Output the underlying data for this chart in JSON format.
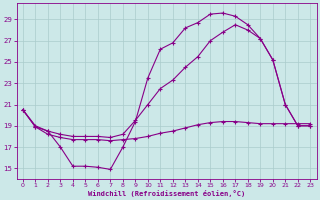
{
  "background_color": "#cce8e8",
  "grid_color": "#aacccc",
  "line_color": "#880088",
  "xlabel": "Windchill (Refroidissement éolien,°C)",
  "xlabel_color": "#880088",
  "tick_color": "#880088",
  "xlim": [
    -0.5,
    23.5
  ],
  "ylim": [
    14.0,
    30.5
  ],
  "yticks": [
    15,
    17,
    19,
    21,
    23,
    25,
    27,
    29
  ],
  "xticks": [
    0,
    1,
    2,
    3,
    4,
    5,
    6,
    7,
    8,
    9,
    10,
    11,
    12,
    13,
    14,
    15,
    16,
    17,
    18,
    19,
    20,
    21,
    22,
    23
  ],
  "top_x": [
    0,
    1,
    2,
    3,
    4,
    5,
    6,
    7,
    8,
    9,
    10,
    11,
    12,
    13,
    14,
    15,
    16,
    17,
    18,
    19,
    20,
    21,
    22,
    23
  ],
  "top_y": [
    20.5,
    18.9,
    18.5,
    17.0,
    15.2,
    15.2,
    15.1,
    14.9,
    17.0,
    19.4,
    23.5,
    26.2,
    26.8,
    28.2,
    28.7,
    29.5,
    29.6,
    29.3,
    28.5,
    27.2,
    25.2,
    21.0,
    19.0,
    19.0
  ],
  "mid_x": [
    0,
    1,
    2,
    3,
    4,
    5,
    6,
    7,
    8,
    9,
    10,
    11,
    12,
    13,
    14,
    15,
    16,
    17,
    18,
    19,
    20,
    21,
    22,
    23
  ],
  "mid_y": [
    20.5,
    19.0,
    18.5,
    18.2,
    18.0,
    18.0,
    18.0,
    17.9,
    18.2,
    19.5,
    21.0,
    22.5,
    23.3,
    24.5,
    25.5,
    27.0,
    27.8,
    28.5,
    28.0,
    27.2,
    25.2,
    21.0,
    19.0,
    19.0
  ],
  "bot_x": [
    0,
    1,
    2,
    3,
    4,
    5,
    6,
    7,
    8,
    9,
    10,
    11,
    12,
    13,
    14,
    15,
    16,
    17,
    18,
    19,
    20,
    21,
    22,
    23
  ],
  "bot_y": [
    20.5,
    18.9,
    18.2,
    17.9,
    17.7,
    17.7,
    17.7,
    17.6,
    17.7,
    17.8,
    18.0,
    18.3,
    18.5,
    18.8,
    19.1,
    19.3,
    19.4,
    19.4,
    19.3,
    19.2,
    19.2,
    19.2,
    19.2,
    19.2
  ]
}
